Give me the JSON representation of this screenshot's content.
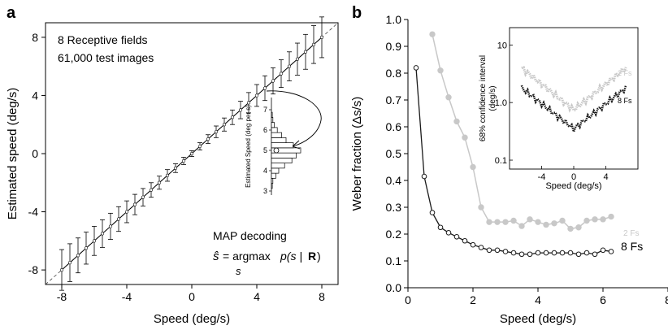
{
  "panel_a": {
    "letter": "a",
    "notes": [
      "8 Receptive fields",
      "61,000 test images"
    ],
    "decoding_title": "MAP decoding",
    "formula": {
      "s_hat": "ŝ",
      "eq": "= argmax",
      "expr": "p(s | ",
      "R": "R",
      "close": ")",
      "sub": "s"
    }
  },
  "panel_b": {
    "letter": "b"
  },
  "chart_data": [
    {
      "type": "line",
      "panel": "a",
      "xlabel": "Speed (deg/s)",
      "ylabel": "Estimated speed (deg/s)",
      "xlim": [
        -9,
        9
      ],
      "ylim": [
        -9,
        9
      ],
      "xticks": [
        "-8",
        "-4",
        "0",
        "4",
        "8"
      ],
      "yticks": [
        "-8",
        "-4",
        "0",
        "4",
        "8"
      ],
      "diagonal_reference": "dashed identity line",
      "series": [
        {
          "x": [
            -8.0,
            -7.5,
            -7.0,
            -6.5,
            -6.0,
            -5.5,
            -5.0,
            -4.5,
            -4.0,
            -3.5,
            -3.0,
            -2.5,
            -2.0,
            -1.5,
            -1.0,
            -0.5,
            0.0,
            0.5,
            1.0,
            1.5,
            2.0,
            2.5,
            3.0,
            3.5,
            4.0,
            4.5,
            5.0,
            5.5,
            6.0,
            6.5,
            7.0,
            7.5,
            8.0
          ],
          "y": [
            -8.0,
            -7.5,
            -7.0,
            -6.5,
            -6.0,
            -5.5,
            -5.0,
            -4.5,
            -4.0,
            -3.5,
            -3.0,
            -2.5,
            -2.0,
            -1.5,
            -1.0,
            -0.5,
            0.0,
            0.5,
            1.0,
            1.5,
            2.0,
            2.5,
            3.0,
            3.5,
            4.0,
            4.5,
            5.0,
            5.5,
            6.0,
            6.5,
            7.0,
            7.5,
            8.0
          ],
          "error": [
            1.4,
            1.3,
            1.2,
            1.1,
            1.0,
            0.95,
            0.9,
            0.85,
            0.75,
            0.7,
            0.6,
            0.5,
            0.45,
            0.4,
            0.3,
            0.25,
            0.2,
            0.25,
            0.3,
            0.4,
            0.45,
            0.5,
            0.6,
            0.7,
            0.75,
            0.85,
            0.9,
            0.95,
            1.0,
            1.1,
            1.2,
            1.3,
            1.4
          ]
        }
      ],
      "inset": {
        "type": "histogram",
        "ylabel": "Estimated Speed (deg per s)",
        "yticks": [
          "3",
          "4",
          "5",
          "6",
          "7"
        ],
        "bins": [
          3.25,
          3.5,
          3.75,
          4.0,
          4.25,
          4.5,
          4.75,
          5.0,
          5.25,
          5.5,
          5.75,
          6.0,
          6.25,
          6.5,
          6.75
        ],
        "counts": [
          0.03,
          0.05,
          0.15,
          0.25,
          0.45,
          0.7,
          0.85,
          1.0,
          0.75,
          0.5,
          0.35,
          0.2,
          0.1,
          0.05,
          0.03
        ],
        "marked_value": 5
      }
    },
    {
      "type": "line",
      "panel": "b",
      "xlabel": "Speed (deg/s)",
      "ylabel": "Weber fraction (Δs/s)",
      "xlim": [
        0,
        8
      ],
      "ylim": [
        0,
        1.0
      ],
      "xticks": [
        "0",
        "2",
        "4",
        "6",
        "8"
      ],
      "yticks": [
        "0.0",
        "0.1",
        "0.2",
        "0.3",
        "0.4",
        "0.5",
        "0.6",
        "0.7",
        "0.8",
        "0.9",
        "1.0"
      ],
      "series": [
        {
          "name": "2 Fs",
          "color": "#c8c8c8",
          "x": [
            0.75,
            1.0,
            1.25,
            1.5,
            1.75,
            2.0,
            2.25,
            2.5,
            2.75,
            3.0,
            3.25,
            3.5,
            3.75,
            4.0,
            4.25,
            4.5,
            4.75,
            5.0,
            5.25,
            5.5,
            5.75,
            6.0,
            6.25
          ],
          "y": [
            0.945,
            0.81,
            0.71,
            0.62,
            0.56,
            0.45,
            0.3,
            0.245,
            0.245,
            0.245,
            0.25,
            0.23,
            0.255,
            0.245,
            0.235,
            0.24,
            0.25,
            0.22,
            0.225,
            0.25,
            0.255,
            0.255,
            0.265
          ]
        },
        {
          "name": "8 Fs",
          "color": "#1a1a1a",
          "x": [
            0.25,
            0.5,
            0.75,
            1.0,
            1.25,
            1.5,
            1.75,
            2.0,
            2.25,
            2.5,
            2.75,
            3.0,
            3.25,
            3.5,
            3.75,
            4.0,
            4.25,
            4.5,
            4.75,
            5.0,
            5.25,
            5.5,
            5.75,
            6.0,
            6.25
          ],
          "y": [
            0.82,
            0.415,
            0.28,
            0.225,
            0.205,
            0.19,
            0.175,
            0.16,
            0.15,
            0.14,
            0.14,
            0.135,
            0.13,
            0.125,
            0.125,
            0.13,
            0.13,
            0.13,
            0.13,
            0.13,
            0.125,
            0.13,
            0.125,
            0.14,
            0.135
          ]
        }
      ],
      "inset": {
        "type": "line",
        "log_y": true,
        "xlabel": "Speed (deg/s)",
        "ylabel_lines": [
          "68% confidence interval",
          "(deg/s)"
        ],
        "xlim": [
          -8,
          8
        ],
        "ylim": [
          0.07,
          20
        ],
        "xticks": [
          "-4",
          "0",
          "4"
        ],
        "yticks": [
          "0.1",
          "1.0",
          "10"
        ],
        "series": [
          {
            "name": "2 Fs",
            "color": "#c8c8c8",
            "x_range": [
              -6.5,
              6.5
            ],
            "center_value": 0.75,
            "edge_value": 4.0
          },
          {
            "name": "8 Fs",
            "color": "#1a1a1a",
            "x_range": [
              -6.5,
              6.5
            ],
            "center_value": 0.35,
            "edge_value": 1.8
          }
        ]
      }
    }
  ]
}
